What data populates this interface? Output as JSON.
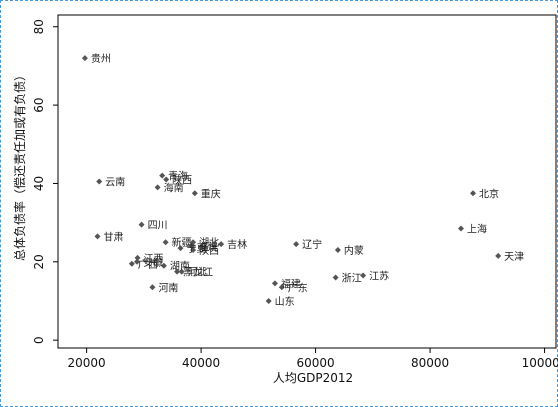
{
  "chart_data": {
    "type": "scatter",
    "xlabel": "人均GDP2012",
    "ylabel": "总体负债率（偿还责任加或有负债）",
    "xlim": [
      15000,
      102000
    ],
    "ylim": [
      -2,
      83
    ],
    "xticks": [
      20000,
      40000,
      60000,
      80000,
      100000
    ],
    "yticks": [
      0,
      20,
      40,
      60,
      80
    ],
    "grid": false,
    "points": [
      {
        "label": "贵州",
        "x": 19700,
        "y": 72
      },
      {
        "label": "云南",
        "x": 22200,
        "y": 40.5
      },
      {
        "label": "甘肃",
        "x": 21900,
        "y": 26.5
      },
      {
        "label": "四川",
        "x": 29600,
        "y": 29.5
      },
      {
        "label": "青海",
        "x": 33200,
        "y": 42
      },
      {
        "label": "陕西",
        "x": 33900,
        "y": 41
      },
      {
        "label": "海南",
        "x": 32400,
        "y": 39
      },
      {
        "label": "重庆",
        "x": 38900,
        "y": 37.5
      },
      {
        "label": "新疆",
        "x": 33800,
        "y": 25
      },
      {
        "label": "湖北",
        "x": 38600,
        "y": 25
      },
      {
        "label": "福建",
        "x": 38400,
        "y": 24
      },
      {
        "label": "宁夏",
        "x": 36400,
        "y": 23.5
      },
      {
        "label": "江西",
        "x": 28900,
        "y": 21
      },
      {
        "label": "广西",
        "x": 27900,
        "y": 19.5
      },
      {
        "label": "河北",
        "x": 36600,
        "y": 17.5
      },
      {
        "label": "湖南",
        "x": 33500,
        "y": 19
      },
      {
        "label": "黑龙江",
        "x": 35800,
        "y": 17.5
      },
      {
        "label": "安徽",
        "x": 28800,
        "y": 20
      },
      {
        "label": "陕西",
        "x": 38600,
        "y": 23
      },
      {
        "label": "吉林",
        "x": 43500,
        "y": 24.5
      },
      {
        "label": "河南",
        "x": 31500,
        "y": 13.5
      },
      {
        "label": "辽宁",
        "x": 56600,
        "y": 24.5
      },
      {
        "label": "内蒙",
        "x": 63900,
        "y": 23
      },
      {
        "label": "浙江",
        "x": 63500,
        "y": 16
      },
      {
        "label": "江苏",
        "x": 68300,
        "y": 16.5
      },
      {
        "label": "福建",
        "x": 52900,
        "y": 14.5
      },
      {
        "label": "广东",
        "x": 54100,
        "y": 13.5
      },
      {
        "label": "山东",
        "x": 51800,
        "y": 10
      },
      {
        "label": "北京",
        "x": 87500,
        "y": 37.5
      },
      {
        "label": "上海",
        "x": 85400,
        "y": 28.5
      },
      {
        "label": "天津",
        "x": 91900,
        "y": 21.5
      }
    ]
  }
}
